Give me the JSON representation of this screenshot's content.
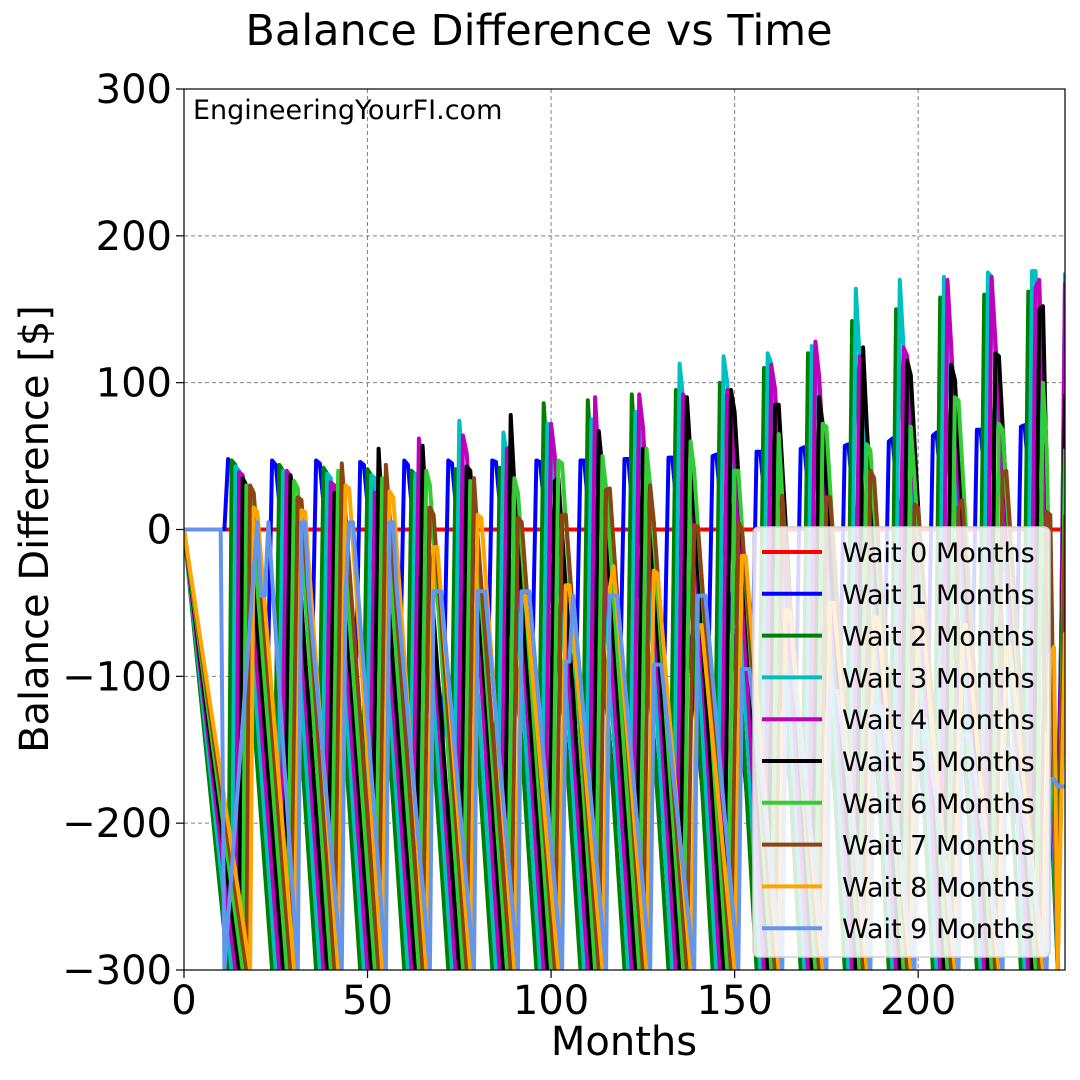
{
  "chart_data": {
    "type": "line",
    "title": "Balance Difference vs Time",
    "xlabel": "Months",
    "ylabel": "Balance Difference [$]",
    "watermark": "EngineeringYourFI.com",
    "xlim": [
      0,
      240
    ],
    "ylim": [
      -300,
      300
    ],
    "xticks": [
      0,
      50,
      100,
      150,
      200
    ],
    "yticks": [
      -300,
      -200,
      -100,
      0,
      100,
      200,
      300
    ],
    "xtick_labels": [
      "0",
      "50",
      "100",
      "150",
      "200"
    ],
    "ytick_labels": [
      "−300",
      "−200",
      "−100",
      "0",
      "100",
      "200",
      "300"
    ],
    "grid": true,
    "legend_position": "lower-right",
    "series": [
      {
        "name": "Wait 0 Months",
        "color": "#ff0000",
        "x": [
          0,
          240
        ],
        "y": [
          0,
          0
        ]
      },
      {
        "name": "Wait 1 Months",
        "color": "#0000ff",
        "x": [
          0,
          11,
          12,
          13,
          22,
          24,
          25,
          34,
          36,
          37,
          46,
          48,
          49,
          58,
          60,
          61,
          70,
          72,
          73,
          82,
          84,
          85,
          94,
          96,
          97,
          106,
          108,
          109,
          118,
          120,
          121,
          130,
          132,
          133,
          142,
          144,
          145,
          154,
          156,
          157,
          166,
          168,
          169,
          178,
          180,
          181,
          190,
          192,
          193,
          202,
          204,
          205,
          214,
          216,
          217,
          226,
          228,
          229,
          238,
          240
        ],
        "y": [
          0,
          0,
          48,
          45,
          -200,
          47,
          44,
          -200,
          47,
          45,
          -200,
          46,
          44,
          -200,
          47,
          44,
          -200,
          47,
          45,
          -200,
          47,
          46,
          -200,
          47,
          46,
          -200,
          47,
          47,
          -200,
          48,
          48,
          -200,
          49,
          49,
          -200,
          50,
          51,
          -200,
          53,
          53,
          -200,
          55,
          56,
          -200,
          57,
          58,
          -200,
          60,
          62,
          -200,
          64,
          66,
          -200,
          68,
          68,
          -200,
          70,
          71,
          -200,
          72
        ]
      },
      {
        "name": "Wait 2 Months",
        "color": "#008000",
        "x": [
          0,
          12,
          13,
          14,
          24,
          26,
          27,
          36,
          38,
          39,
          48,
          50,
          51,
          60,
          62,
          63,
          72,
          74,
          75,
          84,
          86,
          87,
          96,
          98,
          99,
          108,
          110,
          111,
          120,
          122,
          123,
          132,
          134,
          135,
          144,
          146,
          147,
          156,
          158,
          159,
          168,
          170,
          171,
          180,
          182,
          183,
          192,
          194,
          195,
          204,
          206,
          207,
          216,
          218,
          219,
          228,
          230,
          231,
          238,
          240
        ],
        "y": [
          0,
          -300,
          47,
          44,
          -300,
          44,
          40,
          -300,
          42,
          38,
          -300,
          41,
          37,
          -300,
          40,
          37,
          -300,
          41,
          38,
          -300,
          42,
          39,
          -300,
          86,
          45,
          -300,
          88,
          47,
          -300,
          92,
          51,
          -300,
          95,
          88,
          -300,
          100,
          92,
          -300,
          110,
          95,
          -300,
          120,
          100,
          -300,
          142,
          105,
          -300,
          150,
          108,
          -300,
          158,
          110,
          -300,
          160,
          112,
          -300,
          162,
          115,
          -300,
          165
        ]
      },
      {
        "name": "Wait 3 Months",
        "color": "#00bfbf",
        "x": [
          0,
          13,
          14,
          15,
          25,
          27,
          28,
          37,
          39,
          40,
          49,
          51,
          52,
          61,
          63,
          64,
          73,
          75,
          76,
          85,
          87,
          88,
          97,
          99,
          100,
          109,
          111,
          112,
          121,
          123,
          124,
          133,
          135,
          136,
          145,
          147,
          148,
          157,
          159,
          160,
          169,
          171,
          172,
          181,
          183,
          184,
          193,
          195,
          196,
          205,
          207,
          208,
          217,
          219,
          220,
          229,
          231,
          232,
          238,
          240
        ],
        "y": [
          0,
          -300,
          43,
          40,
          -300,
          40,
          37,
          -300,
          38,
          35,
          -300,
          37,
          35,
          -300,
          38,
          35,
          -300,
          74,
          42,
          -300,
          66,
          50,
          -300,
          72,
          60,
          -300,
          75,
          65,
          -300,
          80,
          68,
          -300,
          113,
          88,
          -300,
          118,
          100,
          -300,
          120,
          113,
          -300,
          125,
          117,
          -300,
          164,
          120,
          -300,
          170,
          124,
          -300,
          172,
          130,
          -300,
          175,
          172,
          -300,
          176,
          176,
          -300,
          175
        ]
      },
      {
        "name": "Wait 4 Months",
        "color": "#bf00bf",
        "x": [
          0,
          14,
          15,
          16,
          26,
          28,
          29,
          38,
          40,
          41,
          50,
          52,
          53,
          62,
          64,
          65,
          74,
          76,
          77,
          86,
          88,
          89,
          98,
          100,
          101,
          110,
          112,
          113,
          122,
          124,
          125,
          134,
          136,
          137,
          146,
          148,
          149,
          158,
          160,
          161,
          170,
          172,
          173,
          182,
          184,
          185,
          194,
          196,
          197,
          206,
          208,
          209,
          218,
          220,
          221,
          230,
          232,
          233,
          238,
          240
        ],
        "y": [
          0,
          -300,
          39,
          37,
          -300,
          40,
          36,
          -300,
          32,
          30,
          -300,
          25,
          23,
          -300,
          62,
          35,
          -300,
          64,
          52,
          -300,
          55,
          56,
          -300,
          72,
          50,
          -300,
          90,
          45,
          -300,
          92,
          70,
          -300,
          92,
          86,
          -300,
          95,
          85,
          -300,
          112,
          96,
          -300,
          128,
          105,
          -300,
          118,
          115,
          -300,
          124,
          118,
          -300,
          170,
          125,
          -300,
          172,
          130,
          -300,
          165,
          170,
          -300,
          168
        ]
      },
      {
        "name": "Wait 5 Months",
        "color": "#000000",
        "x": [
          0,
          15,
          16,
          17,
          27,
          29,
          30,
          39,
          41,
          42,
          51,
          53,
          54,
          63,
          65,
          66,
          75,
          77,
          78,
          87,
          89,
          90,
          99,
          101,
          102,
          111,
          113,
          114,
          123,
          125,
          126,
          135,
          137,
          138,
          147,
          149,
          150,
          159,
          161,
          162,
          171,
          173,
          174,
          183,
          185,
          186,
          195,
          197,
          198,
          207,
          209,
          210,
          219,
          221,
          222,
          231,
          233,
          234,
          238,
          240
        ],
        "y": [
          0,
          -300,
          35,
          30,
          -300,
          37,
          20,
          -300,
          25,
          20,
          -300,
          55,
          10,
          -300,
          57,
          10,
          -300,
          43,
          40,
          -300,
          78,
          30,
          -300,
          33,
          35,
          -300,
          67,
          40,
          -300,
          55,
          45,
          -300,
          90,
          50,
          -300,
          95,
          80,
          -300,
          85,
          85,
          -300,
          90,
          72,
          -300,
          124,
          70,
          -300,
          115,
          105,
          -300,
          112,
          102,
          -300,
          120,
          118,
          -300,
          150,
          152,
          -300,
          92
        ]
      },
      {
        "name": "Wait 6 Months",
        "color": "#32cd32",
        "x": [
          0,
          16,
          17,
          18,
          28,
          30,
          31,
          40,
          42,
          43,
          52,
          54,
          55,
          64,
          66,
          67,
          76,
          78,
          79,
          88,
          90,
          91,
          100,
          102,
          103,
          112,
          114,
          115,
          124,
          126,
          127,
          136,
          138,
          139,
          148,
          150,
          151,
          160,
          162,
          163,
          172,
          174,
          175,
          184,
          186,
          187,
          196,
          198,
          199,
          208,
          210,
          211,
          220,
          222,
          223,
          232,
          234,
          235,
          238,
          240
        ],
        "y": [
          0,
          -300,
          30,
          25,
          -300,
          33,
          28,
          -300,
          40,
          8,
          -300,
          35,
          12,
          -300,
          40,
          30,
          -300,
          33,
          20,
          -300,
          35,
          25,
          -300,
          47,
          45,
          -300,
          50,
          28,
          -300,
          55,
          30,
          -300,
          60,
          40,
          -300,
          40,
          40,
          -300,
          65,
          22,
          -300,
          72,
          70,
          -300,
          58,
          54,
          -300,
          70,
          35,
          -300,
          90,
          88,
          -300,
          72,
          68,
          -300,
          100,
          56,
          -300,
          55
        ]
      },
      {
        "name": "Wait 7 Months",
        "color": "#8b4513",
        "x": [
          0,
          17,
          18,
          19,
          29,
          31,
          32,
          41,
          43,
          44,
          53,
          55,
          56,
          65,
          67,
          68,
          77,
          79,
          80,
          89,
          91,
          92,
          101,
          103,
          104,
          113,
          115,
          116,
          125,
          127,
          128,
          137,
          139,
          140,
          149,
          151,
          152,
          161,
          163,
          164,
          173,
          175,
          176,
          185,
          187,
          188,
          197,
          199,
          200,
          209,
          211,
          212,
          221,
          223,
          224,
          233,
          235,
          236,
          238,
          240
        ],
        "y": [
          0,
          -300,
          30,
          25,
          -300,
          22,
          20,
          -300,
          45,
          10,
          -300,
          44,
          10,
          -300,
          15,
          10,
          -300,
          35,
          -5,
          -300,
          8,
          5,
          -300,
          10,
          10,
          -300,
          27,
          28,
          -300,
          30,
          5,
          -300,
          3,
          2,
          -300,
          5,
          0,
          -300,
          23,
          -15,
          -300,
          22,
          22,
          -300,
          40,
          35,
          -300,
          17,
          15,
          -300,
          15,
          20,
          -300,
          38,
          40,
          -300,
          12,
          10,
          -300,
          10
        ]
      },
      {
        "name": "Wait 8 Months",
        "color": "#ffa500",
        "x": [
          0,
          18,
          19,
          20,
          30,
          32,
          33,
          42,
          44,
          45,
          54,
          56,
          57,
          66,
          68,
          69,
          78,
          80,
          81,
          90,
          92,
          93,
          102,
          104,
          105,
          114,
          116,
          117,
          126,
          128,
          129,
          138,
          140,
          141,
          150,
          152,
          153,
          162,
          164,
          165,
          174,
          176,
          177,
          186,
          188,
          189,
          198,
          200,
          201,
          210,
          212,
          213,
          222,
          224,
          225,
          234,
          236,
          237,
          238,
          240
        ],
        "y": [
          0,
          -300,
          15,
          12,
          -300,
          13,
          12,
          -300,
          30,
          28,
          -300,
          26,
          22,
          -300,
          -12,
          -12,
          -300,
          10,
          8,
          -300,
          -50,
          -45,
          -300,
          -38,
          -38,
          -300,
          -40,
          -25,
          -300,
          -28,
          -30,
          -300,
          -66,
          -65,
          -300,
          -18,
          -18,
          -300,
          -55,
          -55,
          -300,
          -50,
          -50,
          -300,
          -60,
          -60,
          -300,
          -55,
          -55,
          -300,
          -70,
          -65,
          -300,
          -80,
          -80,
          -300,
          -85,
          -80,
          -300,
          -70
        ]
      },
      {
        "name": "Wait 9 Months",
        "color": "#6495ed",
        "x": [
          0,
          10,
          11,
          20,
          21,
          22,
          23,
          31,
          32,
          33,
          34,
          43,
          44,
          45,
          46,
          55,
          56,
          57,
          58,
          67,
          68,
          69,
          70,
          79,
          80,
          81,
          82,
          91,
          92,
          93,
          94,
          103,
          104,
          105,
          106,
          115,
          116,
          117,
          118,
          127,
          128,
          129,
          130,
          139,
          140,
          141,
          142,
          151,
          152,
          153,
          154,
          163,
          164,
          165,
          166,
          175,
          176,
          177,
          178,
          187,
          188,
          189,
          190,
          199,
          200,
          201,
          202,
          211,
          212,
          213,
          214,
          223,
          224,
          225,
          226,
          235,
          236,
          237,
          238,
          240
        ],
        "y": [
          0,
          0,
          -300,
          5,
          -45,
          -45,
          5,
          -300,
          5,
          5,
          -45,
          -300,
          -45,
          5,
          5,
          -300,
          5,
          5,
          -42,
          -300,
          -42,
          -42,
          -42,
          -300,
          -42,
          -42,
          -42,
          -300,
          -42,
          -42,
          -42,
          -300,
          -90,
          -90,
          -45,
          -300,
          -45,
          -45,
          -45,
          -300,
          -92,
          -92,
          -92,
          -300,
          -45,
          -45,
          -45,
          -300,
          -95,
          -95,
          -95,
          -300,
          -100,
          -100,
          -100,
          -300,
          -110,
          -110,
          -110,
          -300,
          -120,
          -120,
          -120,
          -300,
          -130,
          -130,
          -130,
          -300,
          -140,
          -140,
          -140,
          -300,
          -150,
          -150,
          -150,
          -300,
          -170,
          -170,
          -175,
          -175
        ]
      }
    ]
  }
}
